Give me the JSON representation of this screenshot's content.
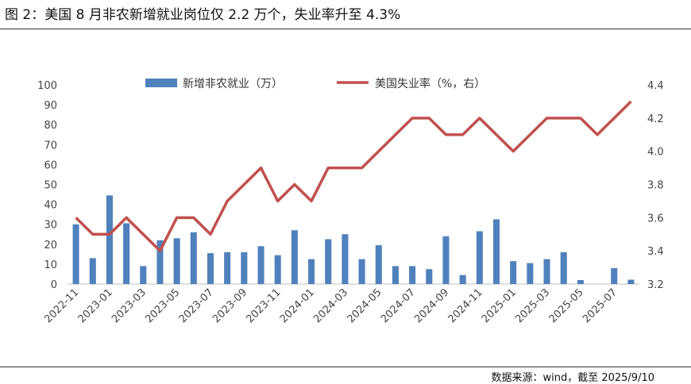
{
  "figure": {
    "title": "图 2：美国 8 月非农新增就业岗位仅 2.2 万个，失业率升至 4.3%",
    "source": "数据来源：wind，截至 2025/9/10"
  },
  "chart_data": {
    "type": "bar+line",
    "x": [
      "2022-11",
      "2022-12",
      "2023-01",
      "2023-02",
      "2023-03",
      "2023-04",
      "2023-05",
      "2023-06",
      "2023-07",
      "2023-08",
      "2023-09",
      "2023-10",
      "2023-11",
      "2023-12",
      "2024-01",
      "2024-02",
      "2024-03",
      "2024-04",
      "2024-05",
      "2024-06",
      "2024-07",
      "2024-08",
      "2024-09",
      "2024-10",
      "2024-11",
      "2024-12",
      "2025-01",
      "2025-02",
      "2025-03",
      "2025-04",
      "2025-05",
      "2025-06",
      "2025-07",
      "2025-08"
    ],
    "x_tick_labels": [
      "2022-11",
      "2023-01",
      "2023-03",
      "2023-05",
      "2023-07",
      "2023-09",
      "2023-11",
      "2024-01",
      "2024-03",
      "2024-05",
      "2024-07",
      "2024-09",
      "2024-11",
      "2025-01",
      "2025-03",
      "2025-05",
      "2025-07"
    ],
    "series": [
      {
        "name": "新增非农就业（万）",
        "kind": "bar",
        "axis": "left",
        "color": "#4f81bd",
        "values": [
          30,
          13,
          44.5,
          30.5,
          9,
          22,
          23,
          26,
          15.5,
          16,
          16,
          19,
          14.5,
          27,
          12.5,
          22.5,
          25,
          12.5,
          19.5,
          9,
          9,
          7.5,
          24,
          4.5,
          26.5,
          32.5,
          11.5,
          10.5,
          12.5,
          16,
          2,
          0,
          8,
          2.2
        ]
      },
      {
        "name": "美国失业率（%，右）",
        "kind": "line",
        "axis": "right",
        "color": "#c0504d",
        "values": [
          3.6,
          3.5,
          3.5,
          3.6,
          3.5,
          3.4,
          3.6,
          3.6,
          3.5,
          3.7,
          3.8,
          3.9,
          3.7,
          3.8,
          3.7,
          3.9,
          3.9,
          3.9,
          4.0,
          4.1,
          4.2,
          4.2,
          4.1,
          4.1,
          4.2,
          4.1,
          4.0,
          4.1,
          4.2,
          4.2,
          4.2,
          4.1,
          4.2,
          4.3
        ]
      }
    ],
    "y_left": {
      "min": 0,
      "max": 100,
      "ticks": [
        "0",
        "10",
        "20",
        "30",
        "40",
        "50",
        "60",
        "70",
        "80",
        "90",
        "100"
      ]
    },
    "y_right": {
      "min": 3.2,
      "max": 4.4,
      "ticks": [
        "3.2",
        "3.4",
        "3.6",
        "3.8",
        "4.0",
        "4.2",
        "4.4"
      ]
    },
    "grid": false,
    "legend_position": "top"
  }
}
